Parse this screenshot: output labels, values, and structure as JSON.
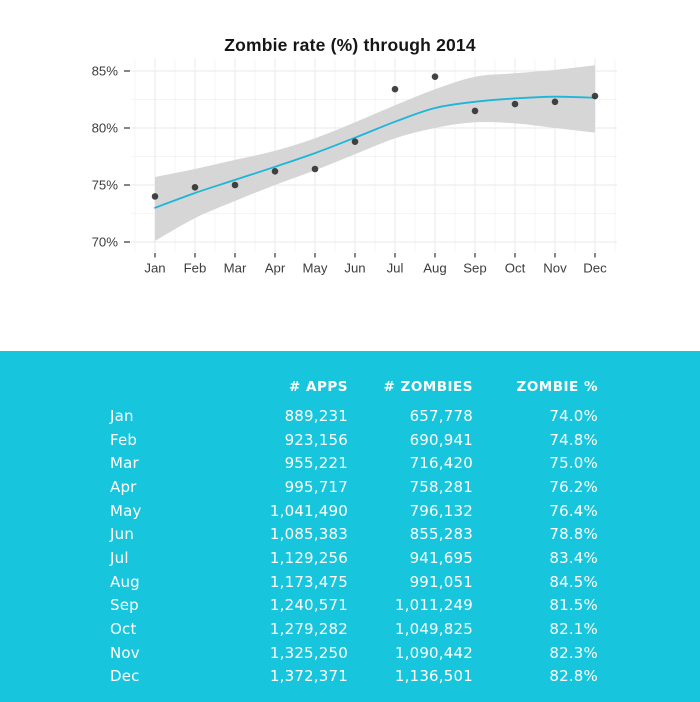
{
  "chart_data": {
    "type": "scatter",
    "title": "Zombie rate (%) through 2014",
    "x": [
      "Jan",
      "Feb",
      "Mar",
      "Apr",
      "May",
      "Jun",
      "Jul",
      "Aug",
      "Sep",
      "Oct",
      "Nov",
      "Dec"
    ],
    "series": [
      {
        "name": "zombie_rate_points",
        "values": [
          74.0,
          74.8,
          75.0,
          76.2,
          76.4,
          78.8,
          83.4,
          84.5,
          81.5,
          82.1,
          82.3,
          82.8
        ]
      },
      {
        "name": "loess_smooth_line",
        "values": [
          73.0,
          74.3,
          75.45,
          76.6,
          77.8,
          79.15,
          80.55,
          81.75,
          82.3,
          82.6,
          82.75,
          82.65
        ]
      },
      {
        "name": "confidence_band_upper",
        "values": [
          75.7,
          76.4,
          77.2,
          78.0,
          79.1,
          80.5,
          82.0,
          83.4,
          84.5,
          84.8,
          85.1,
          85.5
        ]
      },
      {
        "name": "confidence_band_lower",
        "values": [
          70.1,
          72.1,
          73.6,
          75.0,
          76.3,
          77.7,
          79.1,
          80.0,
          80.5,
          80.4,
          80.0,
          79.6
        ]
      }
    ],
    "xlabel": "",
    "ylabel": "",
    "y_tick_values": [
      70,
      75,
      80,
      85
    ],
    "y_tick_labels": [
      "70%",
      "75%",
      "80%",
      "85%"
    ],
    "y_minor_values": [
      72.5,
      77.5,
      82.5
    ],
    "ylim": [
      69.1,
      86.0
    ],
    "grid": true,
    "legend": false,
    "colors": {
      "trend_line": "#1FB5D8",
      "confidence_band": "#D6D6D6",
      "points": "#333333",
      "grid_major": "#EAEAEA",
      "grid_minor": "#F4F4F4",
      "axis_text": "#3D3D3D",
      "tick_mark": "#333333"
    }
  },
  "table": {
    "background": "#17C5DD",
    "text_color": "#FFFFFF",
    "headers": {
      "month": "",
      "apps": "# APPS",
      "zombies": "# ZOMBIES",
      "pct": "ZOMBIE %"
    },
    "rows": [
      {
        "month": "Jan",
        "apps": "889,231",
        "zombies": "657,778",
        "pct": "74.0%"
      },
      {
        "month": "Feb",
        "apps": "923,156",
        "zombies": "690,941",
        "pct": "74.8%"
      },
      {
        "month": "Mar",
        "apps": "955,221",
        "zombies": "716,420",
        "pct": "75.0%"
      },
      {
        "month": "Apr",
        "apps": "995,717",
        "zombies": "758,281",
        "pct": "76.2%"
      },
      {
        "month": "May",
        "apps": "1,041,490",
        "zombies": "796,132",
        "pct": "76.4%"
      },
      {
        "month": "Jun",
        "apps": "1,085,383",
        "zombies": "855,283",
        "pct": "78.8%"
      },
      {
        "month": "Jul",
        "apps": "1,129,256",
        "zombies": "941,695",
        "pct": "83.4%"
      },
      {
        "month": "Aug",
        "apps": "1,173,475",
        "zombies": "991,051",
        "pct": "84.5%"
      },
      {
        "month": "Sep",
        "apps": "1,240,571",
        "zombies": "1,011,249",
        "pct": "81.5%"
      },
      {
        "month": "Oct",
        "apps": "1,279,282",
        "zombies": "1,049,825",
        "pct": "82.1%"
      },
      {
        "month": "Nov",
        "apps": "1,325,250",
        "zombies": "1,090,442",
        "pct": "82.3%"
      },
      {
        "month": "Dec",
        "apps": "1,372,371",
        "zombies": "1,136,501",
        "pct": "82.8%"
      }
    ]
  }
}
